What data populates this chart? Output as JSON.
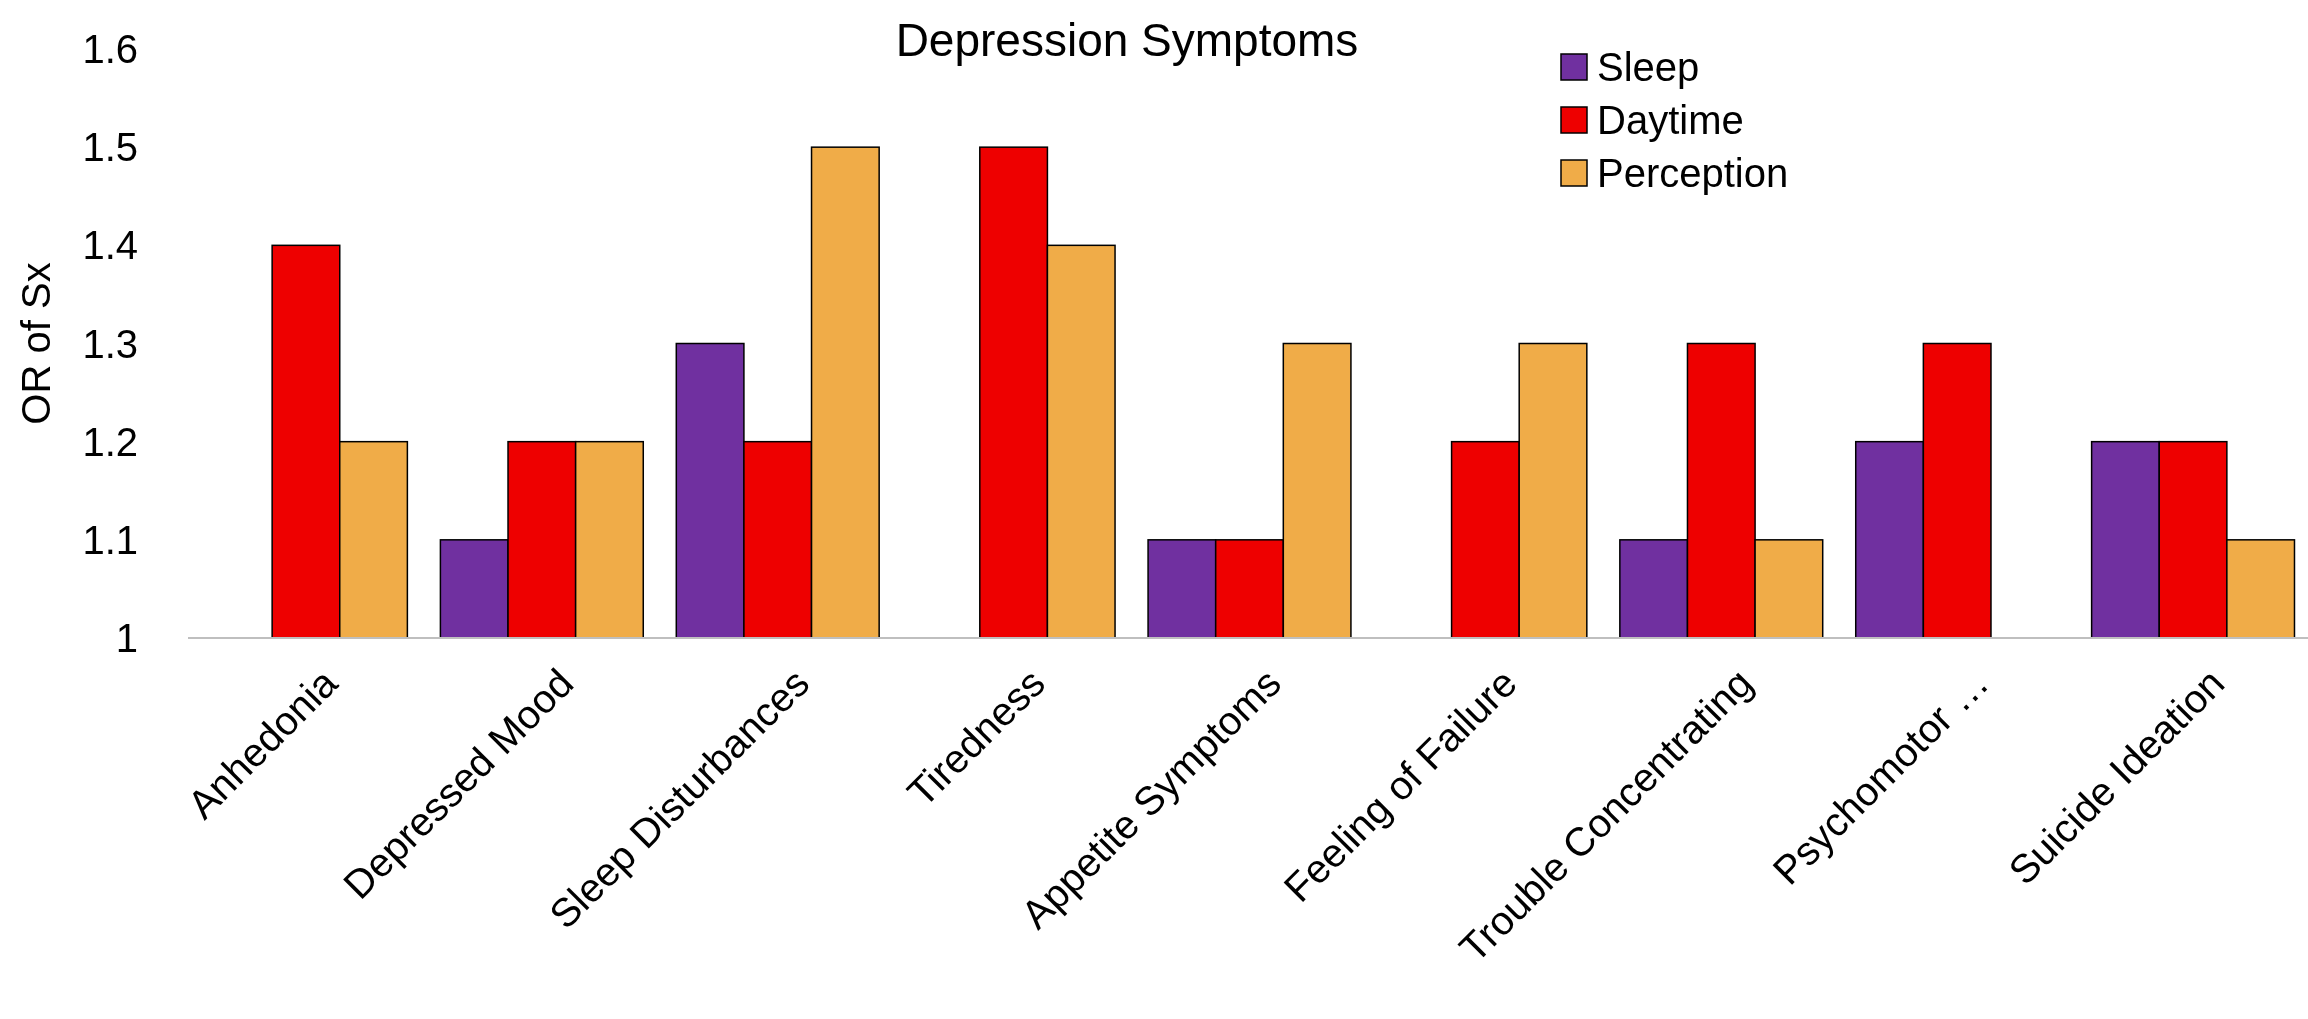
{
  "chart_data": {
    "type": "bar",
    "title": "Depression Symptoms",
    "ylabel": "OR of Sx",
    "categories": [
      "Anhedonia",
      "Depressed Mood",
      "Sleep Disturbances",
      "Tiredness",
      "Appetite Symptoms",
      "Feeling of Failure",
      "Trouble Concentrating",
      "Psychomotor …",
      "Suicide Ideation"
    ],
    "series": [
      {
        "name": "Sleep",
        "color": "#7030a0",
        "values": [
          null,
          1.1,
          1.3,
          null,
          1.1,
          null,
          1.1,
          1.2,
          1.2
        ]
      },
      {
        "name": "Daytime",
        "color": "#ee0000",
        "values": [
          1.4,
          1.2,
          1.2,
          1.5,
          1.1,
          1.2,
          1.3,
          1.3,
          1.2
        ]
      },
      {
        "name": "Perception",
        "color": "#f0ac48",
        "values": [
          1.2,
          1.2,
          1.5,
          1.4,
          1.3,
          1.3,
          1.1,
          null,
          1.1
        ]
      }
    ],
    "ylim": [
      1,
      1.6
    ],
    "yticks": [
      1,
      1.1,
      1.2,
      1.3,
      1.4,
      1.5,
      1.6
    ],
    "grid": false,
    "legend": "top right"
  }
}
